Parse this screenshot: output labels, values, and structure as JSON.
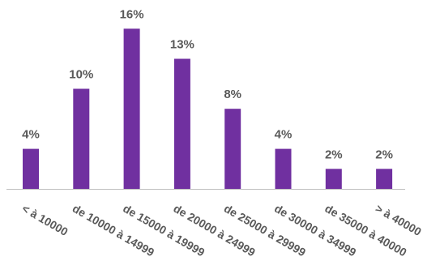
{
  "chart_data": {
    "type": "bar",
    "categories": [
      "< à 10000",
      "de 10000 à 14999",
      "de 15000 à 19999",
      "de 20000 à 24999",
      "de 25000 à 29999",
      "de 30000 à 34999",
      "de 35000 à 40000",
      "> à 40000"
    ],
    "values": [
      4,
      10,
      16,
      13,
      8,
      4,
      2,
      2
    ],
    "data_labels": [
      "4%",
      "10%",
      "16%",
      "13%",
      "8%",
      "4%",
      "2%",
      "2%"
    ],
    "value_unit": "%",
    "title": "",
    "xlabel": "",
    "ylabel": "",
    "ylim": [
      0,
      16
    ],
    "grid": false,
    "legend": "none",
    "bar_color": "#7030A0",
    "axis_color": "#BFBFBF",
    "text_color": "#595959"
  }
}
